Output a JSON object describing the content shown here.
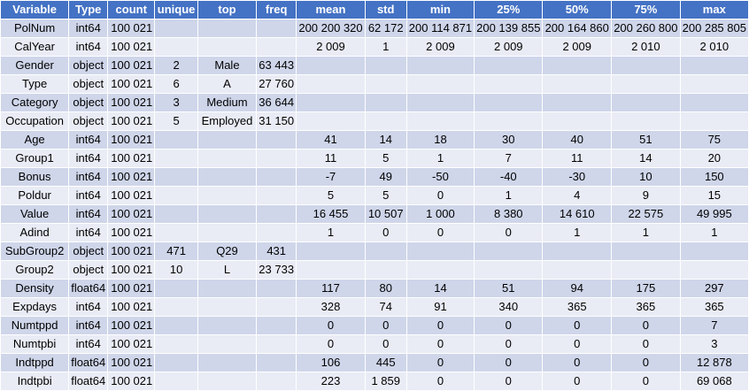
{
  "headers": [
    "Variable",
    "Type",
    "count",
    "unique",
    "top",
    "freq",
    "mean",
    "std",
    "min",
    "25%",
    "50%",
    "75%",
    "max"
  ],
  "rows": [
    [
      "PolNum",
      "int64",
      "100 021",
      "",
      "",
      "",
      "200 200 320",
      "62 172",
      "200 114 871",
      "200 139 855",
      "200 164 860",
      "200 260 800",
      "200 285 805"
    ],
    [
      "CalYear",
      "int64",
      "100 021",
      "",
      "",
      "",
      "2 009",
      "1",
      "2 009",
      "2 009",
      "2 009",
      "2 010",
      "2 010"
    ],
    [
      "Gender",
      "object",
      "100 021",
      "2",
      "Male",
      "63 443",
      "",
      "",
      "",
      "",
      "",
      "",
      ""
    ],
    [
      "Type",
      "object",
      "100 021",
      "6",
      "A",
      "27 760",
      "",
      "",
      "",
      "",
      "",
      "",
      ""
    ],
    [
      "Category",
      "object",
      "100 021",
      "3",
      "Medium",
      "36 644",
      "",
      "",
      "",
      "",
      "",
      "",
      ""
    ],
    [
      "Occupation",
      "object",
      "100 021",
      "5",
      "Employed",
      "31 150",
      "",
      "",
      "",
      "",
      "",
      "",
      ""
    ],
    [
      "Age",
      "int64",
      "100 021",
      "",
      "",
      "",
      "41",
      "14",
      "18",
      "30",
      "40",
      "51",
      "75"
    ],
    [
      "Group1",
      "int64",
      "100 021",
      "",
      "",
      "",
      "11",
      "5",
      "1",
      "7",
      "11",
      "14",
      "20"
    ],
    [
      "Bonus",
      "int64",
      "100 021",
      "",
      "",
      "",
      "-7",
      "49",
      "-50",
      "-40",
      "-30",
      "10",
      "150"
    ],
    [
      "Poldur",
      "int64",
      "100 021",
      "",
      "",
      "",
      "5",
      "5",
      "0",
      "1",
      "4",
      "9",
      "15"
    ],
    [
      "Value",
      "int64",
      "100 021",
      "",
      "",
      "",
      "16 455",
      "10 507",
      "1 000",
      "8 380",
      "14 610",
      "22 575",
      "49 995"
    ],
    [
      "Adind",
      "int64",
      "100 021",
      "",
      "",
      "",
      "1",
      "0",
      "0",
      "0",
      "1",
      "1",
      "1"
    ],
    [
      "SubGroup2",
      "object",
      "100 021",
      "471",
      "Q29",
      "431",
      "",
      "",
      "",
      "",
      "",
      "",
      ""
    ],
    [
      "Group2",
      "object",
      "100 021",
      "10",
      "L",
      "23 733",
      "",
      "",
      "",
      "",
      "",
      "",
      ""
    ],
    [
      "Density",
      "float64",
      "100 021",
      "",
      "",
      "",
      "117",
      "80",
      "14",
      "51",
      "94",
      "175",
      "297"
    ],
    [
      "Expdays",
      "int64",
      "100 021",
      "",
      "",
      "",
      "328",
      "74",
      "91",
      "340",
      "365",
      "365",
      "365"
    ],
    [
      "Numtppd",
      "int64",
      "100 021",
      "",
      "",
      "",
      "0",
      "0",
      "0",
      "0",
      "0",
      "0",
      "7"
    ],
    [
      "Numtpbi",
      "int64",
      "100 021",
      "",
      "",
      "",
      "0",
      "0",
      "0",
      "0",
      "0",
      "0",
      "3"
    ],
    [
      "Indtppd",
      "float64",
      "100 021",
      "",
      "",
      "",
      "106",
      "445",
      "0",
      "0",
      "0",
      "0",
      "12 878"
    ],
    [
      "Indtpbi",
      "float64",
      "100 021",
      "",
      "",
      "",
      "223",
      "1 859",
      "0",
      "0",
      "0",
      "0",
      "69 068"
    ]
  ],
  "colors": {
    "header_bg": "#4472c4",
    "header_text": "#ffffff",
    "row_dark": "#cfd6ea",
    "row_light": "#e9ecf5"
  }
}
